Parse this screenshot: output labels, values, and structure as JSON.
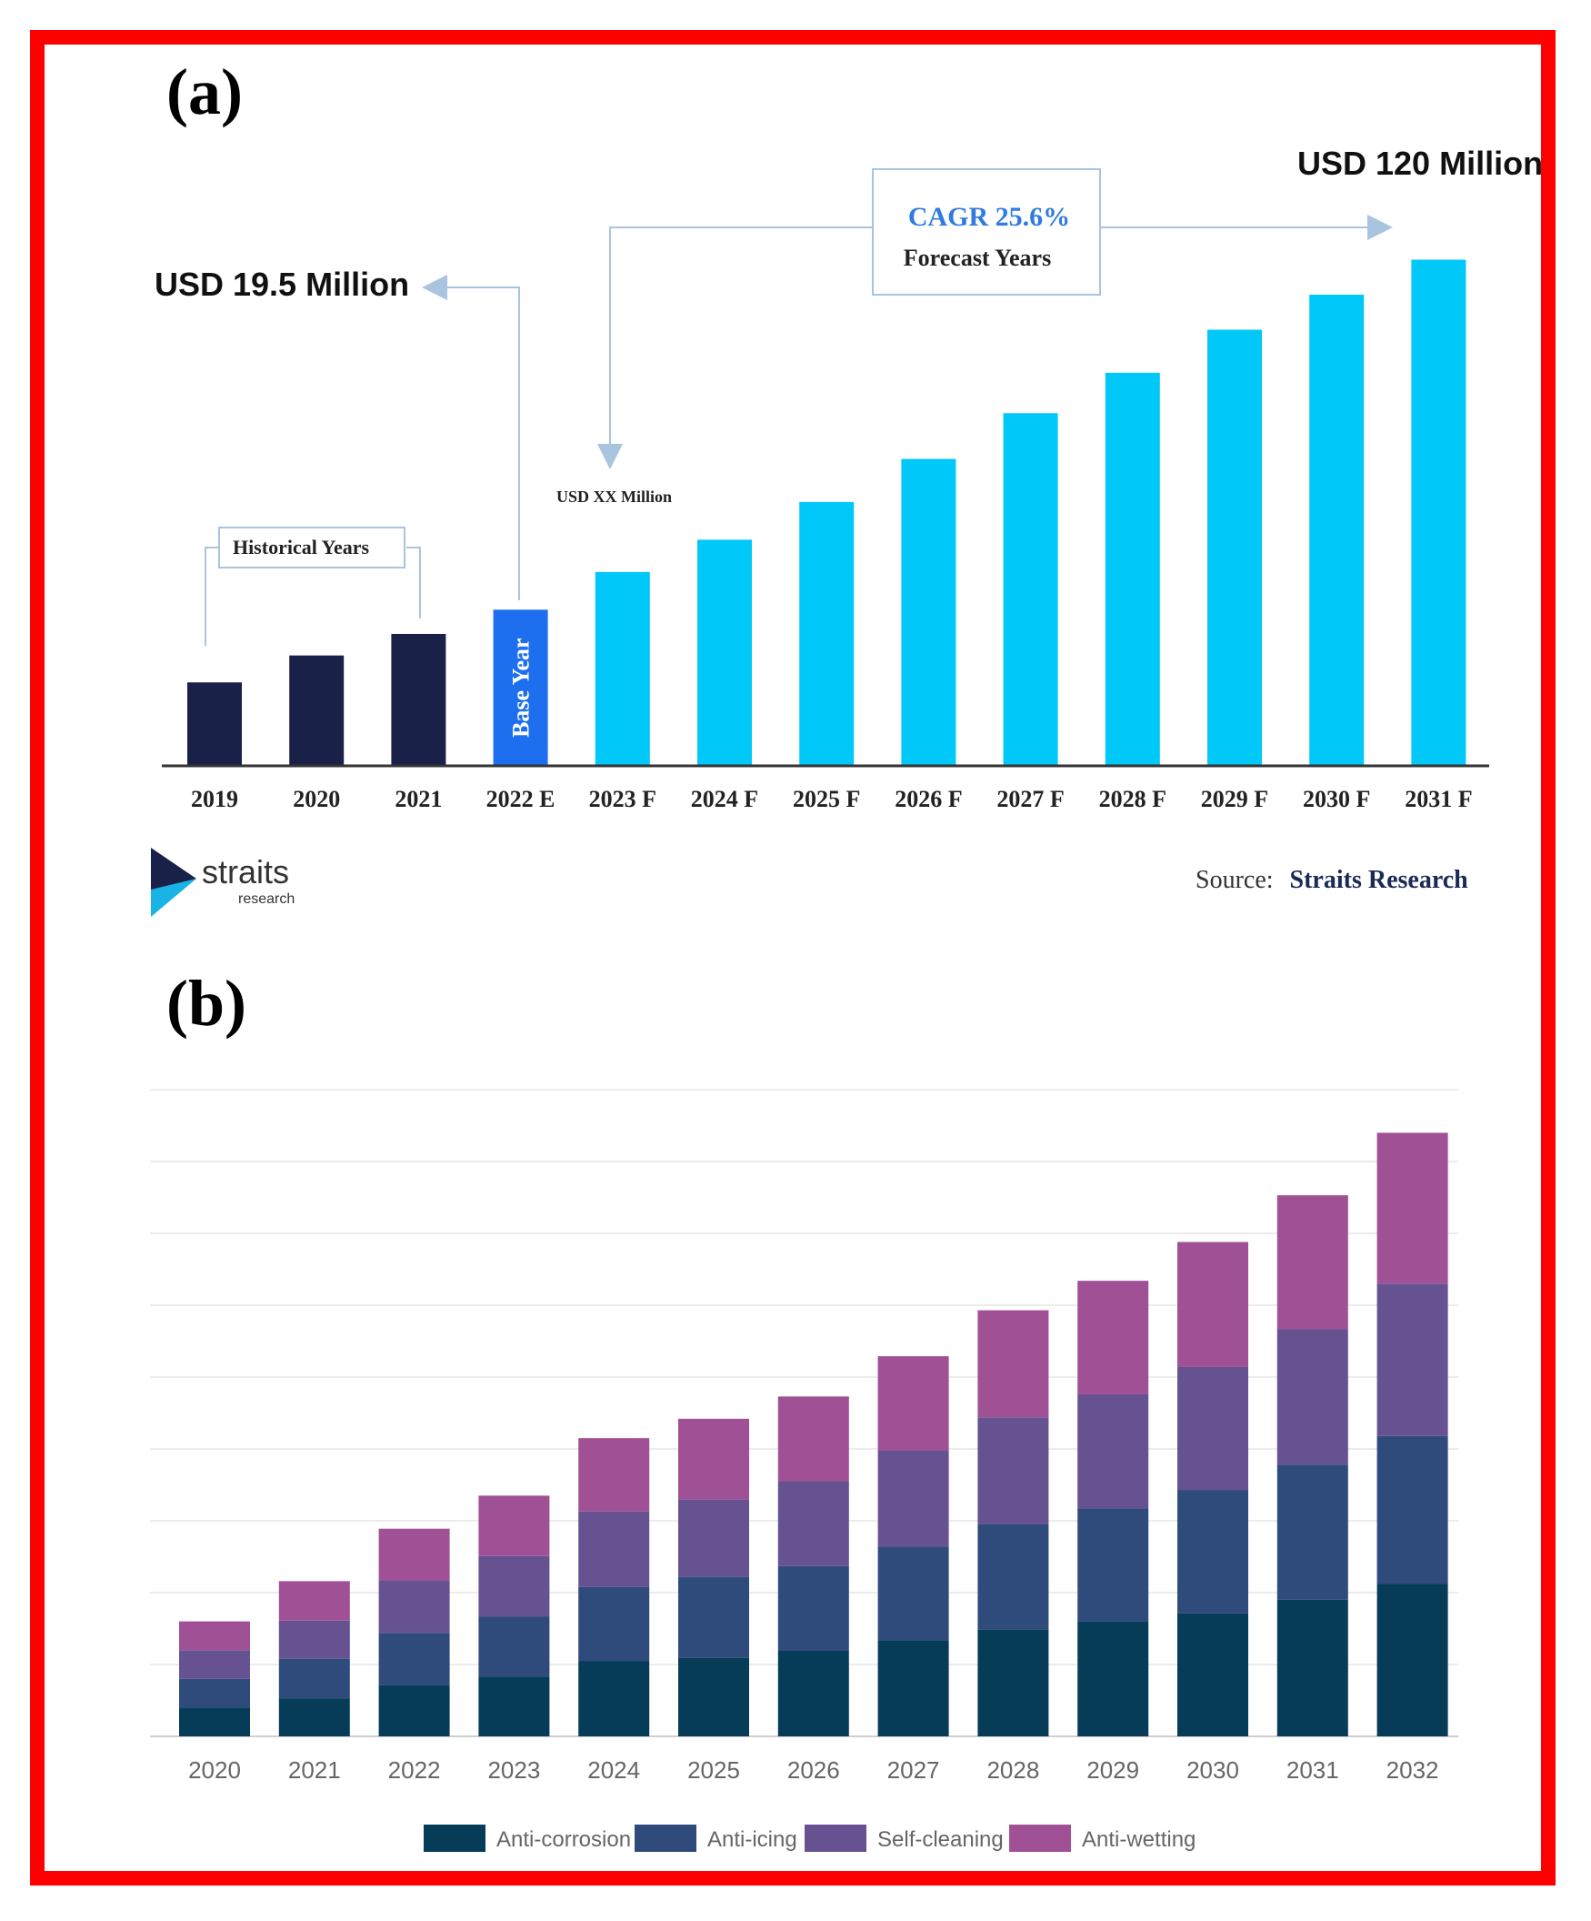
{
  "panels": {
    "a": {
      "label": "(a)",
      "annotations": {
        "start_value": "USD 19.5 Million",
        "end_value": "USD 120 Million",
        "cagr": "CAGR 25.6%",
        "forecast_years": "Forecast Years",
        "historical_years": "Historical Years",
        "base_year": "Base Year",
        "usd_xx": "USD XX Million"
      },
      "source_label": "Source:",
      "source_name": "Straits Research",
      "logo": {
        "word": "straits",
        "sub": "research"
      }
    },
    "b": {
      "label": "(b)"
    }
  },
  "colors": {
    "historical": "#1a2148",
    "base_year": "#1e6ff0",
    "forecast": "#00c8f8",
    "cagr_text": "#2f7be0",
    "frame": "#ff0000",
    "anti_corrosion": "#073c58",
    "anti_icing": "#2f4b7c",
    "self_cleaning": "#665191",
    "anti_wetting": "#a05195"
  },
  "chart_data": [
    {
      "type": "bar",
      "categories": [
        "2019",
        "2020",
        "2021",
        "2022 E",
        "2023 F",
        "2024 F",
        "2025 F",
        "2026 F",
        "2027 F",
        "2028 F",
        "2029 F",
        "2030 F",
        "2031 F"
      ],
      "values": [
        15.5,
        20.5,
        24.5,
        29,
        36,
        42,
        49,
        57,
        65.5,
        73,
        81,
        87.5,
        94
      ],
      "bar_groups": [
        "historical",
        "historical",
        "historical",
        "base_year",
        "forecast",
        "forecast",
        "forecast",
        "forecast",
        "forecast",
        "forecast",
        "forecast",
        "forecast",
        "forecast"
      ],
      "ylim": [
        0,
        100
      ],
      "grid": false,
      "xlabel": "",
      "ylabel": ""
    },
    {
      "type": "bar",
      "stacked": true,
      "categories": [
        "2020",
        "2021",
        "2022",
        "2023",
        "2024",
        "2025",
        "2026",
        "2027",
        "2028",
        "2029",
        "2030",
        "2031",
        "2032"
      ],
      "series": [
        {
          "name": "Anti-corrosion",
          "color_key": "anti_corrosion",
          "values": [
            0.4,
            0.53,
            0.71,
            0.83,
            1.05,
            1.09,
            1.19,
            1.34,
            1.49,
            1.6,
            1.71,
            1.9,
            2.12
          ]
        },
        {
          "name": "Anti-icing",
          "color_key": "anti_icing",
          "values": [
            0.4,
            0.55,
            0.73,
            0.84,
            1.03,
            1.13,
            1.18,
            1.3,
            1.46,
            1.57,
            1.72,
            1.88,
            2.06
          ]
        },
        {
          "name": "Self-cleaning",
          "color_key": "self_cleaning",
          "values": [
            0.4,
            0.53,
            0.73,
            0.84,
            1.05,
            1.08,
            1.18,
            1.34,
            1.49,
            1.59,
            1.71,
            1.89,
            2.12
          ]
        },
        {
          "name": "Anti-wetting",
          "color_key": "anti_wetting",
          "values": [
            0.4,
            0.55,
            0.72,
            0.84,
            1.02,
            1.12,
            1.18,
            1.31,
            1.49,
            1.58,
            1.74,
            1.86,
            2.1
          ]
        }
      ],
      "ylim": [
        0,
        9
      ],
      "y_tick_labels_shown": false,
      "grid": true,
      "legend_position": "bottom",
      "xlabel": "",
      "ylabel": ""
    }
  ]
}
